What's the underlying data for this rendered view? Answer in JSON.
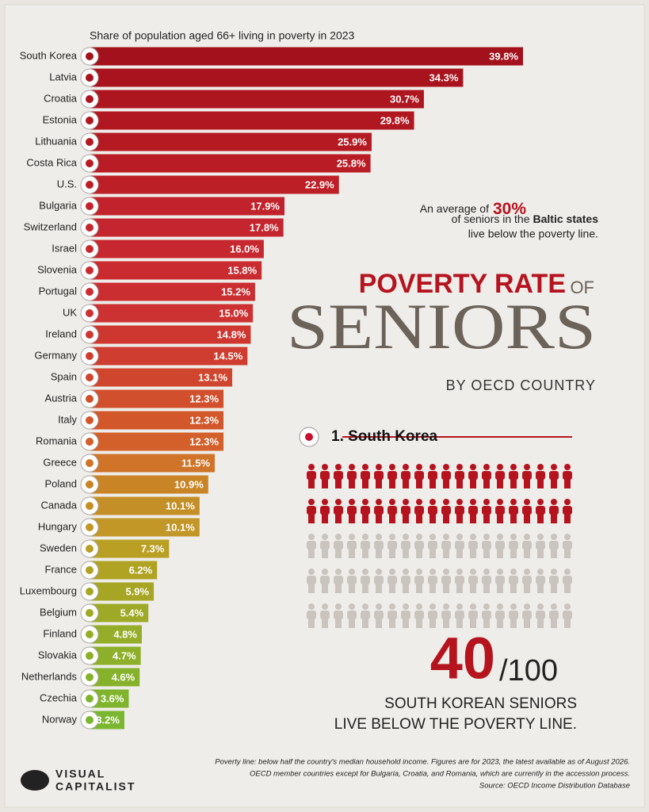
{
  "chart_data": {
    "type": "bar",
    "orientation": "horizontal",
    "subtitle": "Share of population aged 66+ living in poverty in 2023",
    "categories": [
      "South Korea",
      "Latvia",
      "Croatia",
      "Estonia",
      "Lithuania",
      "Costa Rica",
      "U.S.",
      "Bulgaria",
      "Switzerland",
      "Israel",
      "Slovenia",
      "Portugal",
      "UK",
      "Ireland",
      "Germany",
      "Spain",
      "Austria",
      "Italy",
      "Romania",
      "Greece",
      "Poland",
      "Canada",
      "Hungary",
      "Sweden",
      "France",
      "Luxembourg",
      "Belgium",
      "Finland",
      "Slovakia",
      "Netherlands",
      "Czechia",
      "Norway"
    ],
    "values": [
      39.8,
      34.3,
      30.7,
      29.8,
      25.9,
      25.8,
      22.9,
      17.9,
      17.8,
      16.0,
      15.8,
      15.2,
      15.0,
      14.8,
      14.5,
      13.1,
      12.3,
      12.3,
      12.3,
      11.5,
      10.9,
      10.1,
      10.1,
      7.3,
      6.2,
      5.9,
      5.4,
      4.8,
      4.7,
      4.6,
      3.6,
      3.2
    ],
    "value_labels": [
      "39.8%",
      "34.3%",
      "30.7%",
      "29.8%",
      "25.9%",
      "25.8%",
      "22.9%",
      "17.9%",
      "17.8%",
      "16.0%",
      "15.8%",
      "15.2%",
      "15.0%",
      "14.8%",
      "14.5%",
      "13.1%",
      "12.3%",
      "12.3%",
      "12.3%",
      "11.5%",
      "10.9%",
      "10.1%",
      "10.1%",
      "7.3%",
      "6.2%",
      "5.9%",
      "5.4%",
      "4.8%",
      "4.7%",
      "4.6%",
      "3.6%",
      "3.2%"
    ],
    "colors": [
      "#a3111c",
      "#a8131d",
      "#ad151f",
      "#b11720",
      "#b51a22",
      "#b91c24",
      "#bd1f27",
      "#c2222b",
      "#c4252e",
      "#c7282f",
      "#c92b30",
      "#cb2e31",
      "#cc3231",
      "#cd3730",
      "#ce3d2f",
      "#d0452e",
      "#d14f2c",
      "#d2572b",
      "#d35f2a",
      "#cf7428",
      "#c98426",
      "#c58f27",
      "#c29627",
      "#b9a024",
      "#b0a323",
      "#a7a624",
      "#9ea925",
      "#95ad28",
      "#8daf29",
      "#86b22b",
      "#80b42d",
      "#7ab62f"
    ],
    "annotation": {
      "line1": "An average of",
      "highlight": "30%",
      "line2": "of seniors in the",
      "line2_bold": "Baltic states",
      "line3": "live below the poverty line."
    },
    "title": {
      "part1": "POVERTY RATE",
      "part2": "OF",
      "main": "SENIORS",
      "sub": "BY OECD COUNTRY"
    },
    "callout": {
      "rank": "1. South Korea",
      "count": 40,
      "total": {
        "value": 100,
        "label": "/100"
      },
      "line1": "SOUTH KOREAN SENIORS",
      "line2": "LIVE BELOW THE POVERTY LINE."
    },
    "notes": [
      "Poverty line: below half the country's median household income. Figures are for 2023, the latest available as of August 2026.",
      "OECD member countries except for Bulgaria, Croatia, and Romania, which are currently in the accession process.",
      "Source: OECD Income Distribution Database"
    ],
    "logo": {
      "line1": "VISUAL",
      "line2": "CAPITALIST"
    }
  }
}
